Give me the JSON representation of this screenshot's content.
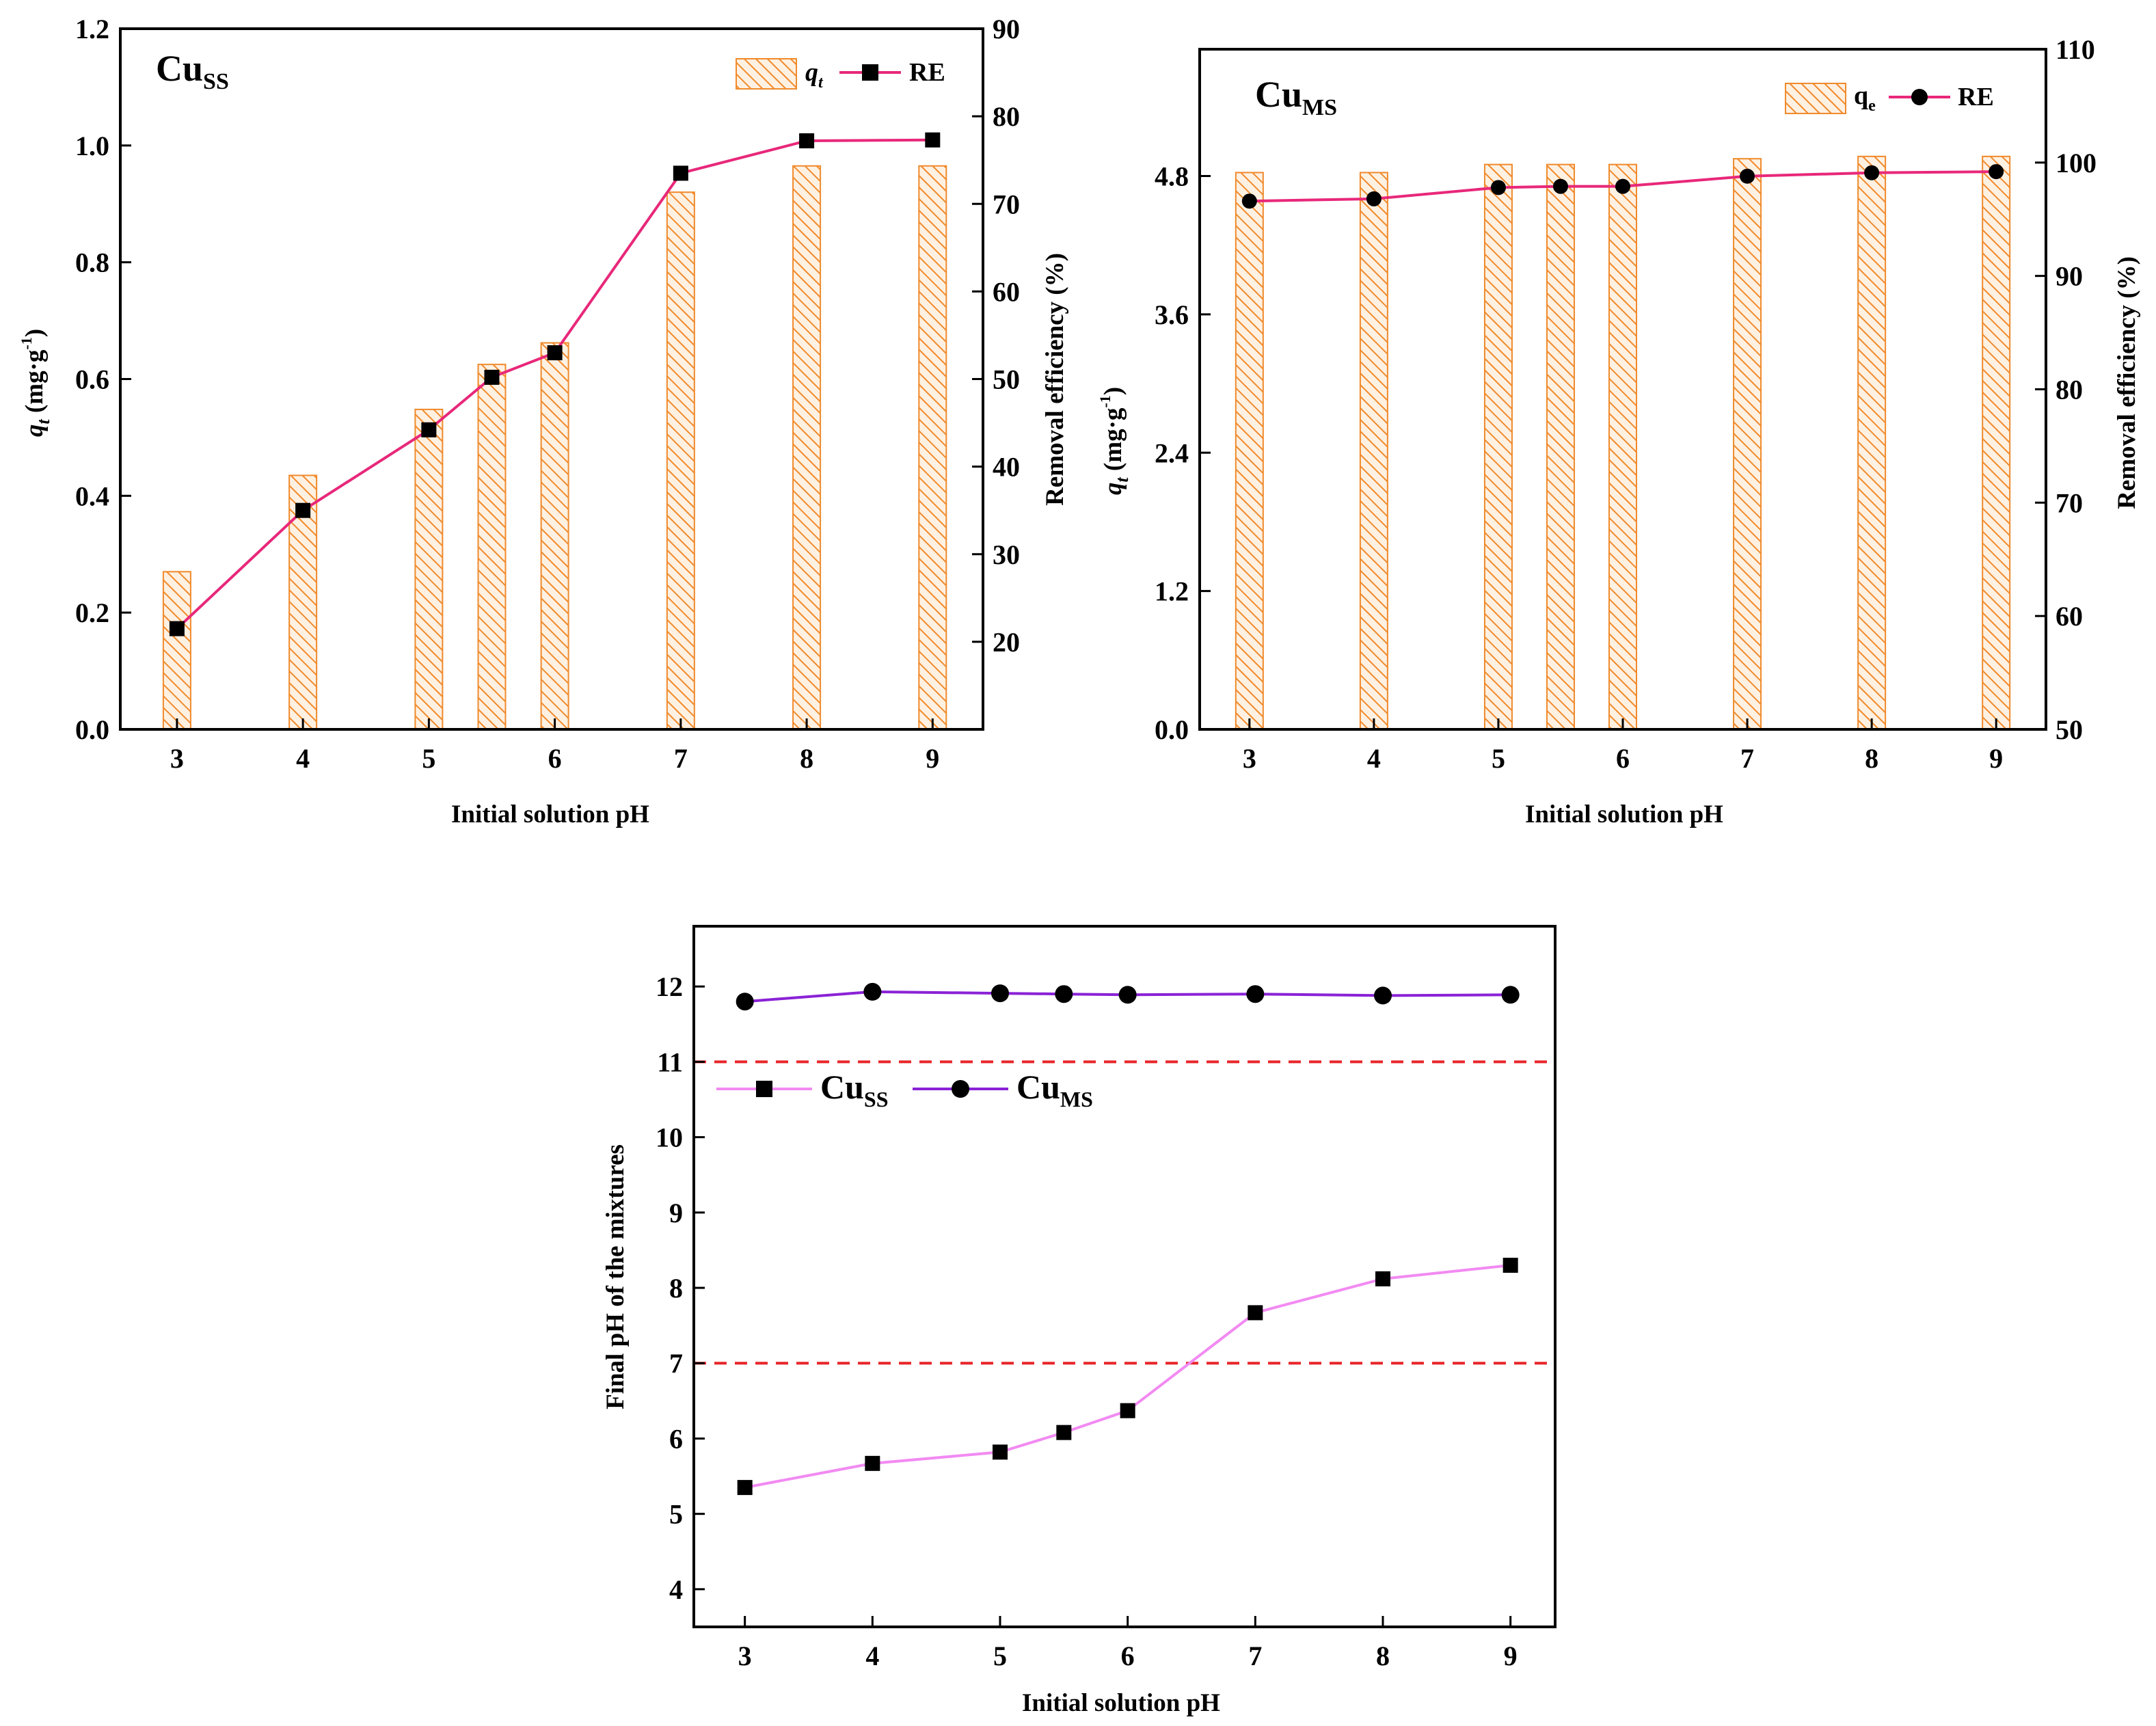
{
  "chart_data": [
    {
      "type": "bar+line",
      "title": "Cu",
      "title_sub": "SS",
      "xlabel": "Initial solution pH",
      "ylabel": "q",
      "ylabel_italic": "t",
      "ylabel_unit": " (mg·g",
      "ylabel_sup": "-1",
      "ylabel_close": ")",
      "y2label": "Removal efficiency (%)",
      "xlim": [
        2.55,
        9.4
      ],
      "ylim": [
        0,
        1.2
      ],
      "y2lim": [
        10,
        90
      ],
      "x_ticks": [
        3,
        4,
        5,
        6,
        7,
        8,
        9
      ],
      "x_tick_labels": [
        "3",
        "4",
        "5",
        "6",
        "7",
        "8",
        "9"
      ],
      "y_ticks": [
        0,
        0.2,
        0.4,
        0.6,
        0.8,
        1.0,
        1.2
      ],
      "y_tick_labels": [
        "0.0",
        "0.2",
        "0.4",
        "0.6",
        "0.8",
        "1.0",
        "1.2"
      ],
      "y2_ticks": [
        20,
        30,
        40,
        50,
        60,
        70,
        80,
        90
      ],
      "y2_tick_labels": [
        "20",
        "30",
        "40",
        "50",
        "60",
        "70",
        "80",
        "90"
      ],
      "x": [
        3,
        4,
        5,
        5.5,
        6,
        7,
        8,
        9
      ],
      "series": [
        {
          "name": "q",
          "name_sub": "t",
          "axis": "left",
          "kind": "bar",
          "values": [
            0.27,
            0.435,
            0.548,
            0.625,
            0.662,
            0.92,
            0.965,
            0.965
          ]
        },
        {
          "name": "RE",
          "axis": "right",
          "kind": "line",
          "marker": "square",
          "values": [
            21.5,
            35,
            44.2,
            50.2,
            53,
            73.5,
            77.2,
            77.3
          ]
        }
      ],
      "legend_position": "top-right"
    },
    {
      "type": "bar+line",
      "title": "Cu",
      "title_sub": "MS",
      "xlabel": "Initial solution pH",
      "ylabel": "q",
      "ylabel_italic": "t",
      "ylabel_unit": " (mg·g",
      "ylabel_sup": "-1",
      "ylabel_close": ")",
      "y2label": "Removal efficiency (%)",
      "xlim": [
        2.6,
        9.4
      ],
      "ylim": [
        0,
        5.9
      ],
      "y2lim": [
        50,
        110
      ],
      "x_ticks": [
        3,
        4,
        5,
        6,
        7,
        8,
        9
      ],
      "x_tick_labels": [
        "3",
        "4",
        "5",
        "6",
        "7",
        "8",
        "9"
      ],
      "y_ticks": [
        0,
        1.2,
        2.4,
        3.6,
        4.8
      ],
      "y_tick_labels": [
        "0.0",
        "1.2",
        "2.4",
        "3.6",
        "4.8"
      ],
      "y2_ticks": [
        50,
        60,
        70,
        80,
        90,
        100,
        110
      ],
      "y2_tick_labels": [
        "50",
        "60",
        "70",
        "80",
        "90",
        "100",
        "110"
      ],
      "x": [
        3,
        4,
        5,
        5.5,
        6,
        7,
        8,
        9
      ],
      "series": [
        {
          "name": "q",
          "name_sub": "e",
          "axis": "left",
          "kind": "bar",
          "values": [
            4.83,
            4.83,
            4.9,
            4.9,
            4.9,
            4.95,
            4.97,
            4.97
          ]
        },
        {
          "name": "RE",
          "axis": "right",
          "kind": "line",
          "marker": "circle",
          "values": [
            96.6,
            96.8,
            97.8,
            97.9,
            97.9,
            98.8,
            99.1,
            99.2
          ]
        }
      ],
      "legend_position": "top-right"
    },
    {
      "type": "line",
      "xlabel": "Initial solution pH",
      "ylabel": "Final pH of the mixtures",
      "xlim": [
        2.6,
        9.35
      ],
      "ylim": [
        3.5,
        12.8
      ],
      "x_ticks": [
        3,
        4,
        5,
        6,
        7,
        8,
        9
      ],
      "x_tick_labels": [
        "3",
        "4",
        "5",
        "6",
        "7",
        "8",
        "9"
      ],
      "y_ticks": [
        4,
        5,
        6,
        7,
        8,
        9,
        10,
        11,
        12
      ],
      "y_tick_labels": [
        "4",
        "5",
        "6",
        "7",
        "8",
        "9",
        "10",
        "11",
        "12"
      ],
      "reference_lines": [
        11,
        7
      ],
      "x": [
        3,
        4,
        5,
        5.5,
        6,
        7,
        8,
        9
      ],
      "series": [
        {
          "name": "Cu",
          "name_sub": "SS",
          "marker": "square",
          "values": [
            5.35,
            5.67,
            5.82,
            6.08,
            6.37,
            7.67,
            8.12,
            8.3
          ]
        },
        {
          "name": "Cu",
          "name_sub": "MS",
          "marker": "circle",
          "values": [
            11.8,
            11.93,
            11.91,
            11.9,
            11.89,
            11.9,
            11.88,
            11.89
          ]
        }
      ],
      "legend_position": "center-left"
    }
  ],
  "colors": {
    "bar_fill": "#ffe4c8",
    "bar_stroke": "#f08a2c",
    "re_line": "#e8287a",
    "cuss_line": "#f28af2",
    "cums_line": "#8a22d6",
    "ref_line": "#e8262a",
    "marker": "#000000"
  }
}
